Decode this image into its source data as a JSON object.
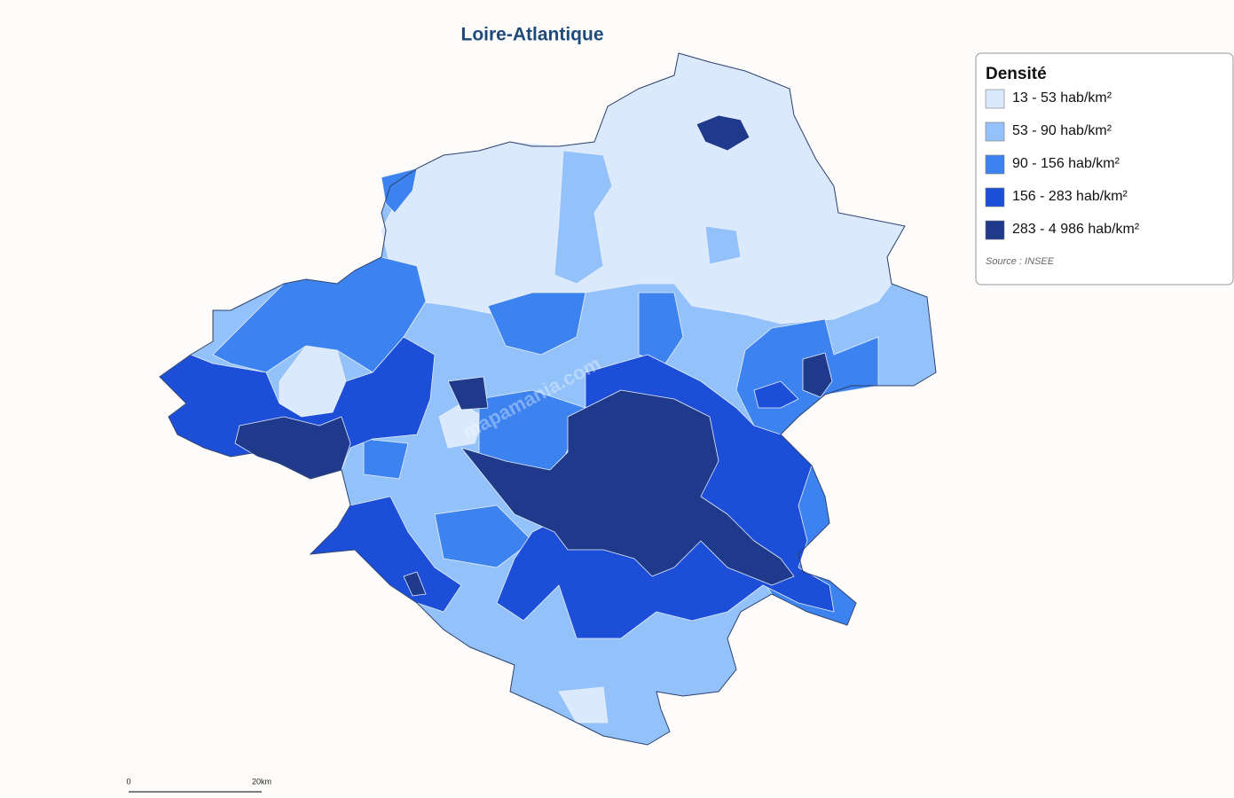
{
  "title": "Loire-Atlantique",
  "legend": {
    "title": "Densité",
    "items": [
      {
        "label": "13 - 53 hab/km²",
        "color": "#dbe9fd"
      },
      {
        "label": "53 - 90 hab/km²",
        "color": "#93c2fb"
      },
      {
        "label": "90 - 156 hab/km²",
        "color": "#3d83ef"
      },
      {
        "label": "156 - 283 hab/km²",
        "color": "#1d4ed8"
      },
      {
        "label": "283 - 4 986 hab/km²",
        "color": "#1f3a8a"
      }
    ],
    "source": "Source : INSEE"
  },
  "scale": {
    "start": "0",
    "end": "20km"
  },
  "watermark": "mapamania.com"
}
